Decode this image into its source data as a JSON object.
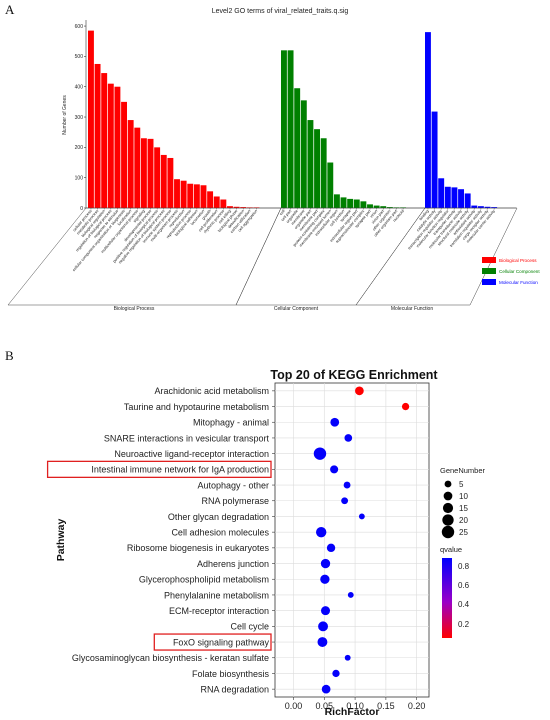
{
  "figure": {
    "panel_a_label": "A",
    "panel_b_label": "B"
  },
  "chart_data": [
    {
      "type": "bar",
      "title": "Level2 GO terms of viral_related_traits.q.sig",
      "xlabel": "",
      "ylabel": "Number of Genes",
      "ylim": [
        0,
        600
      ],
      "yticks": [
        0,
        100,
        200,
        300,
        400,
        500,
        600
      ],
      "groups": [
        "Biological Process",
        "Cellular Component",
        "Molecular Function"
      ],
      "legend": {
        "position": "right",
        "entries": [
          {
            "name": "Biological Process",
            "color": "#ff0000"
          },
          {
            "name": "Cellular Component",
            "color": "#008000"
          },
          {
            "name": "Molecular Function",
            "color": "#0000ff"
          }
        ]
      },
      "series": [
        {
          "name": "Biological Process",
          "color": "#ff0000",
          "categories": [
            "cellular process",
            "metabolic process",
            "biological regulation",
            "regulation of biological process",
            "response to stimulus",
            "cellular component organization or biogenesis",
            "localization",
            "multicellular organismal process",
            "signaling",
            "developmental process",
            "positive regulation of biological process",
            "negative regulation of biological process",
            "immune system process",
            "multi-organism process",
            "reproduction",
            "reproductive process",
            "biological adhesion",
            "locomotion",
            "growth",
            "cell proliferation",
            "rhythmic process",
            "cell killing",
            "biological phase",
            "detoxification",
            "carbon utilization",
            "cell aggregation"
          ],
          "values": [
            585,
            475,
            445,
            410,
            400,
            350,
            290,
            265,
            230,
            228,
            200,
            175,
            165,
            95,
            90,
            80,
            78,
            75,
            55,
            38,
            28,
            6,
            4,
            3,
            2,
            1
          ]
        },
        {
          "name": "Cellular Component",
          "color": "#008000",
          "categories": [
            "cell",
            "cell part",
            "organelle",
            "membrane",
            "organelle part",
            "membrane part",
            "protein-containing complex",
            "membrane-enclosed lumen",
            "extracellular region",
            "cell junction",
            "synapse",
            "extracellular region part",
            "supramolecular complex",
            "synapse part",
            "virion",
            "virion part",
            "other organism",
            "other organism part",
            "nucleoid"
          ],
          "values": [
            520,
            520,
            395,
            355,
            290,
            260,
            230,
            150,
            45,
            35,
            30,
            28,
            22,
            12,
            8,
            6,
            3,
            2,
            2
          ]
        },
        {
          "name": "Molecular Function",
          "color": "#0000ff",
          "categories": [
            "binding",
            "catalytic activity",
            "transcription regulator activity",
            "molecular function regulator",
            "transporter activity",
            "molecular transducer activity",
            "structural molecule activity",
            "antioxidant activity",
            "translation regulator activity",
            "cargo receptor activity",
            "molecular carrier activity"
          ],
          "values": [
            580,
            318,
            98,
            70,
            68,
            62,
            48,
            8,
            6,
            4,
            3
          ]
        }
      ]
    },
    {
      "type": "scatter",
      "title": "Top 20 of KEGG Enrichment",
      "xlabel": "RichFactor",
      "ylabel": "Pathway",
      "xlim": [
        -0.03,
        0.22
      ],
      "xticks": [
        "0.00",
        "0.05",
        "0.10",
        "0.15",
        "0.20"
      ],
      "grid": true,
      "size_legend": {
        "title": "GeneNumber",
        "values": [
          5,
          10,
          15,
          20,
          25
        ]
      },
      "color_legend": {
        "title": "qvalue",
        "ticks": [
          "0.8",
          "0.6",
          "0.4",
          "0.2"
        ],
        "low_color": "#ff0000",
        "high_color": "#0000ff"
      },
      "highlighted": [
        "Intestinal immune network for IgA production",
        "FoxO signaling pathway"
      ],
      "points": [
        {
          "pathway": "Arachidonic acid metabolism",
          "rich_factor": 0.107,
          "gene_number": 10,
          "qvalue": 0.2
        },
        {
          "pathway": "Taurine and hypotaurine metabolism",
          "rich_factor": 0.182,
          "gene_number": 6,
          "qvalue": 0.2
        },
        {
          "pathway": "Mitophagy - animal",
          "rich_factor": 0.067,
          "gene_number": 10,
          "qvalue": 0.87
        },
        {
          "pathway": "SNARE interactions in vesicular transport",
          "rich_factor": 0.089,
          "gene_number": 7,
          "qvalue": 0.87
        },
        {
          "pathway": "Neuroactive ligand-receptor interaction",
          "rich_factor": 0.043,
          "gene_number": 25,
          "qvalue": 0.87
        },
        {
          "pathway": "Intestinal immune network for IgA production",
          "rich_factor": 0.066,
          "gene_number": 8,
          "qvalue": 0.87
        },
        {
          "pathway": "Autophagy - other",
          "rich_factor": 0.087,
          "gene_number": 5,
          "qvalue": 0.87
        },
        {
          "pathway": "RNA polymerase",
          "rich_factor": 0.083,
          "gene_number": 5,
          "qvalue": 0.87
        },
        {
          "pathway": "Other glycan degradation",
          "rich_factor": 0.111,
          "gene_number": 3,
          "qvalue": 0.87
        },
        {
          "pathway": "Cell adhesion molecules",
          "rich_factor": 0.045,
          "gene_number": 16,
          "qvalue": 0.87
        },
        {
          "pathway": "Ribosome biogenesis in eukaryotes",
          "rich_factor": 0.061,
          "gene_number": 9,
          "qvalue": 0.87
        },
        {
          "pathway": "Adherens junction",
          "rich_factor": 0.052,
          "gene_number": 12,
          "qvalue": 0.87
        },
        {
          "pathway": "Glycerophospholipid metabolism",
          "rich_factor": 0.051,
          "gene_number": 12,
          "qvalue": 0.87
        },
        {
          "pathway": "Phenylalanine metabolism",
          "rich_factor": 0.093,
          "gene_number": 3,
          "qvalue": 0.87
        },
        {
          "pathway": "ECM-receptor interaction",
          "rich_factor": 0.052,
          "gene_number": 11,
          "qvalue": 0.87
        },
        {
          "pathway": "Cell cycle",
          "rich_factor": 0.048,
          "gene_number": 14,
          "qvalue": 0.87
        },
        {
          "pathway": "FoxO signaling pathway",
          "rich_factor": 0.047,
          "gene_number": 14,
          "qvalue": 0.87
        },
        {
          "pathway": "Glycosaminoglycan biosynthesis - keratan sulfate",
          "rich_factor": 0.088,
          "gene_number": 3,
          "qvalue": 0.87
        },
        {
          "pathway": "Folate biosynthesis",
          "rich_factor": 0.069,
          "gene_number": 6,
          "qvalue": 0.87
        },
        {
          "pathway": "RNA degradation",
          "rich_factor": 0.053,
          "gene_number": 10,
          "qvalue": 0.87
        }
      ]
    }
  ]
}
